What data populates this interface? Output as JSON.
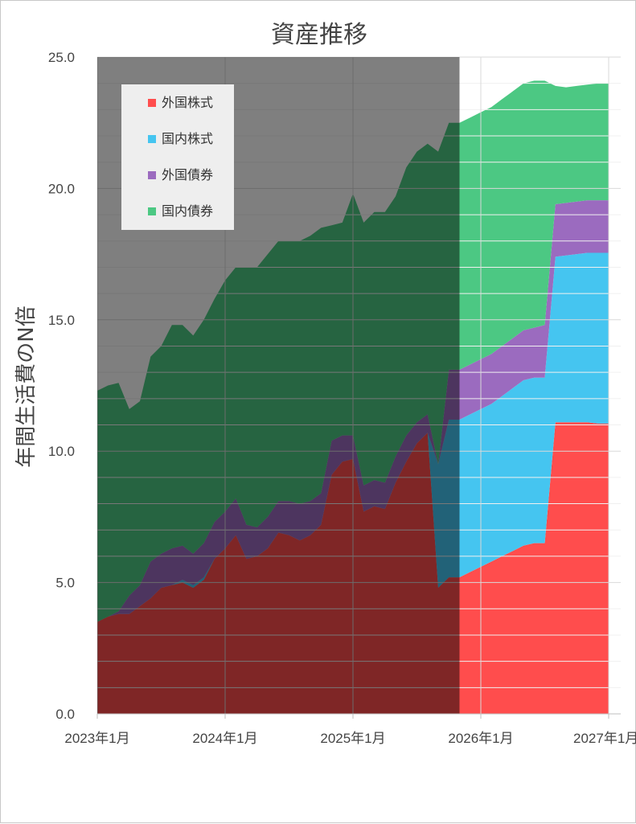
{
  "chart_data": {
    "type": "area",
    "stacked": true,
    "title": "資産推移",
    "ylabel": "年間生活費のN倍",
    "xlabel": "",
    "ylim": [
      0,
      25
    ],
    "yticks": [
      "0.0",
      "5.0",
      "10.0",
      "15.0",
      "20.0",
      "25.0"
    ],
    "xlim": [
      "2023-01",
      "2027-01"
    ],
    "xticks": [
      "2023年1月",
      "2024年1月",
      "2025年1月",
      "2026年1月",
      "2027年1月"
    ],
    "grid": true,
    "legend_position": "top-left",
    "shaded_until": "2025-11",
    "x": [
      "2023-01",
      "2023-02",
      "2023-03",
      "2023-04",
      "2023-05",
      "2023-06",
      "2023-07",
      "2023-08",
      "2023-09",
      "2023-10",
      "2023-11",
      "2023-12",
      "2024-01",
      "2024-02",
      "2024-03",
      "2024-04",
      "2024-05",
      "2024-06",
      "2024-07",
      "2024-08",
      "2024-09",
      "2024-10",
      "2024-11",
      "2024-12",
      "2025-01",
      "2025-02",
      "2025-03",
      "2025-04",
      "2025-05",
      "2025-06",
      "2025-07",
      "2025-08",
      "2025-09",
      "2025-10",
      "2025-11",
      "2025-12",
      "2026-01",
      "2026-02",
      "2026-03",
      "2026-04",
      "2026-05",
      "2026-06",
      "2026-07",
      "2026-08",
      "2026-09",
      "2026-10",
      "2026-11",
      "2026-12",
      "2027-01"
    ],
    "series": [
      {
        "name": "外国株式",
        "color": "#ff4d4d",
        "values": [
          3.5,
          3.7,
          3.8,
          3.8,
          4.1,
          4.4,
          4.8,
          4.9,
          5.0,
          4.8,
          5.1,
          5.9,
          6.3,
          6.8,
          5.9,
          6.0,
          6.3,
          6.9,
          6.8,
          6.6,
          6.8,
          7.2,
          9.1,
          9.6,
          9.7,
          7.7,
          7.9,
          7.8,
          8.8,
          9.6,
          10.3,
          10.7,
          4.8,
          5.2,
          5.2,
          5.4,
          5.6,
          5.8,
          6.0,
          6.2,
          6.4,
          6.5,
          6.5,
          11.1,
          11.1,
          11.1,
          11.1,
          11.05,
          11.05
        ]
      },
      {
        "name": "国内株式",
        "color": "#45c5f0",
        "values": [
          0,
          0,
          0,
          0,
          0,
          0,
          0,
          0,
          0.1,
          0.1,
          0.1,
          0,
          0,
          0,
          0,
          0,
          0,
          0,
          0,
          0,
          0,
          0,
          0,
          0,
          0,
          0,
          0,
          0,
          0,
          0,
          0,
          0,
          4.7,
          6.0,
          6.0,
          6.0,
          6.0,
          6.0,
          6.1,
          6.2,
          6.3,
          6.3,
          6.3,
          6.3,
          6.35,
          6.4,
          6.45,
          6.5,
          6.5
        ]
      },
      {
        "name": "外国債券",
        "color": "#9b6bbf",
        "values": [
          0,
          0,
          0.1,
          0.7,
          0.8,
          1.4,
          1.3,
          1.4,
          1.3,
          1.2,
          1.3,
          1.4,
          1.4,
          1.4,
          1.3,
          1.1,
          1.2,
          1.2,
          1.3,
          1.4,
          1.3,
          1.2,
          1.3,
          1.0,
          0.9,
          1.0,
          1.0,
          1.0,
          1.0,
          1.0,
          0.8,
          0.7,
          0,
          1.9,
          1.9,
          1.9,
          1.9,
          1.9,
          1.9,
          1.9,
          1.9,
          1.9,
          2.0,
          2.0,
          2.0,
          2.0,
          2.0,
          2.0,
          2.0
        ]
      },
      {
        "name": "国内債券",
        "color": "#4cc883",
        "values": [
          8.8,
          8.8,
          8.7,
          7.1,
          7.0,
          7.8,
          7.9,
          8.5,
          8.4,
          8.3,
          8.5,
          8.5,
          8.8,
          8.8,
          9.8,
          9.9,
          10.0,
          9.9,
          9.9,
          10.0,
          10.1,
          10.1,
          8.2,
          8.1,
          9.2,
          10.0,
          10.2,
          10.3,
          9.9,
          10.2,
          10.3,
          10.3,
          11.9,
          9.4,
          9.4,
          9.4,
          9.4,
          9.4,
          9.4,
          9.4,
          9.4,
          9.4,
          9.3,
          4.5,
          4.4,
          4.4,
          4.4,
          4.45,
          4.45
        ]
      }
    ]
  }
}
